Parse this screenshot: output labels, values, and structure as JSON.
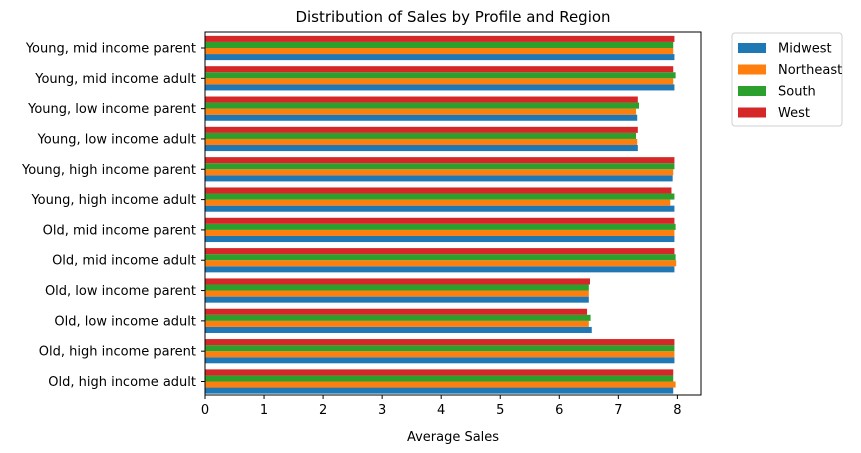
{
  "chart_data": {
    "type": "bar",
    "orientation": "horizontal",
    "title": "Distribution of Sales by Profile and Region",
    "xlabel": "Average Sales",
    "ylabel": "",
    "xlim": [
      0,
      8.4
    ],
    "x_ticks": [
      "0",
      "1",
      "2",
      "3",
      "4",
      "5",
      "6",
      "7",
      "8"
    ],
    "grid": false,
    "legend_position": "outside-top-right",
    "categories": [
      "Old, high income adult",
      "Old, high income parent",
      "Old, low income adult",
      "Old, low income parent",
      "Old, mid income adult",
      "Old, mid income parent",
      "Young, high income adult",
      "Young, high income parent",
      "Young, low income adult",
      "Young, low income parent",
      "Young, mid income adult",
      "Young, mid income parent"
    ],
    "series": [
      {
        "name": "Midwest",
        "color": "#1f77b4",
        "values": [
          7.93,
          7.95,
          6.55,
          6.5,
          7.95,
          7.95,
          7.95,
          7.92,
          7.33,
          7.32,
          7.95,
          7.95
        ]
      },
      {
        "name": "Northeast",
        "color": "#ff7f0e",
        "values": [
          7.97,
          7.95,
          6.5,
          6.5,
          7.98,
          7.95,
          7.88,
          7.93,
          7.32,
          7.3,
          7.93,
          7.93
        ]
      },
      {
        "name": "South",
        "color": "#2ca02c",
        "values": [
          7.93,
          7.95,
          6.53,
          6.5,
          7.97,
          7.97,
          7.95,
          7.95,
          7.3,
          7.35,
          7.97,
          7.93
        ]
      },
      {
        "name": "West",
        "color": "#d62728",
        "values": [
          7.93,
          7.95,
          6.47,
          6.52,
          7.95,
          7.95,
          7.9,
          7.95,
          7.33,
          7.33,
          7.93,
          7.95
        ]
      }
    ]
  }
}
